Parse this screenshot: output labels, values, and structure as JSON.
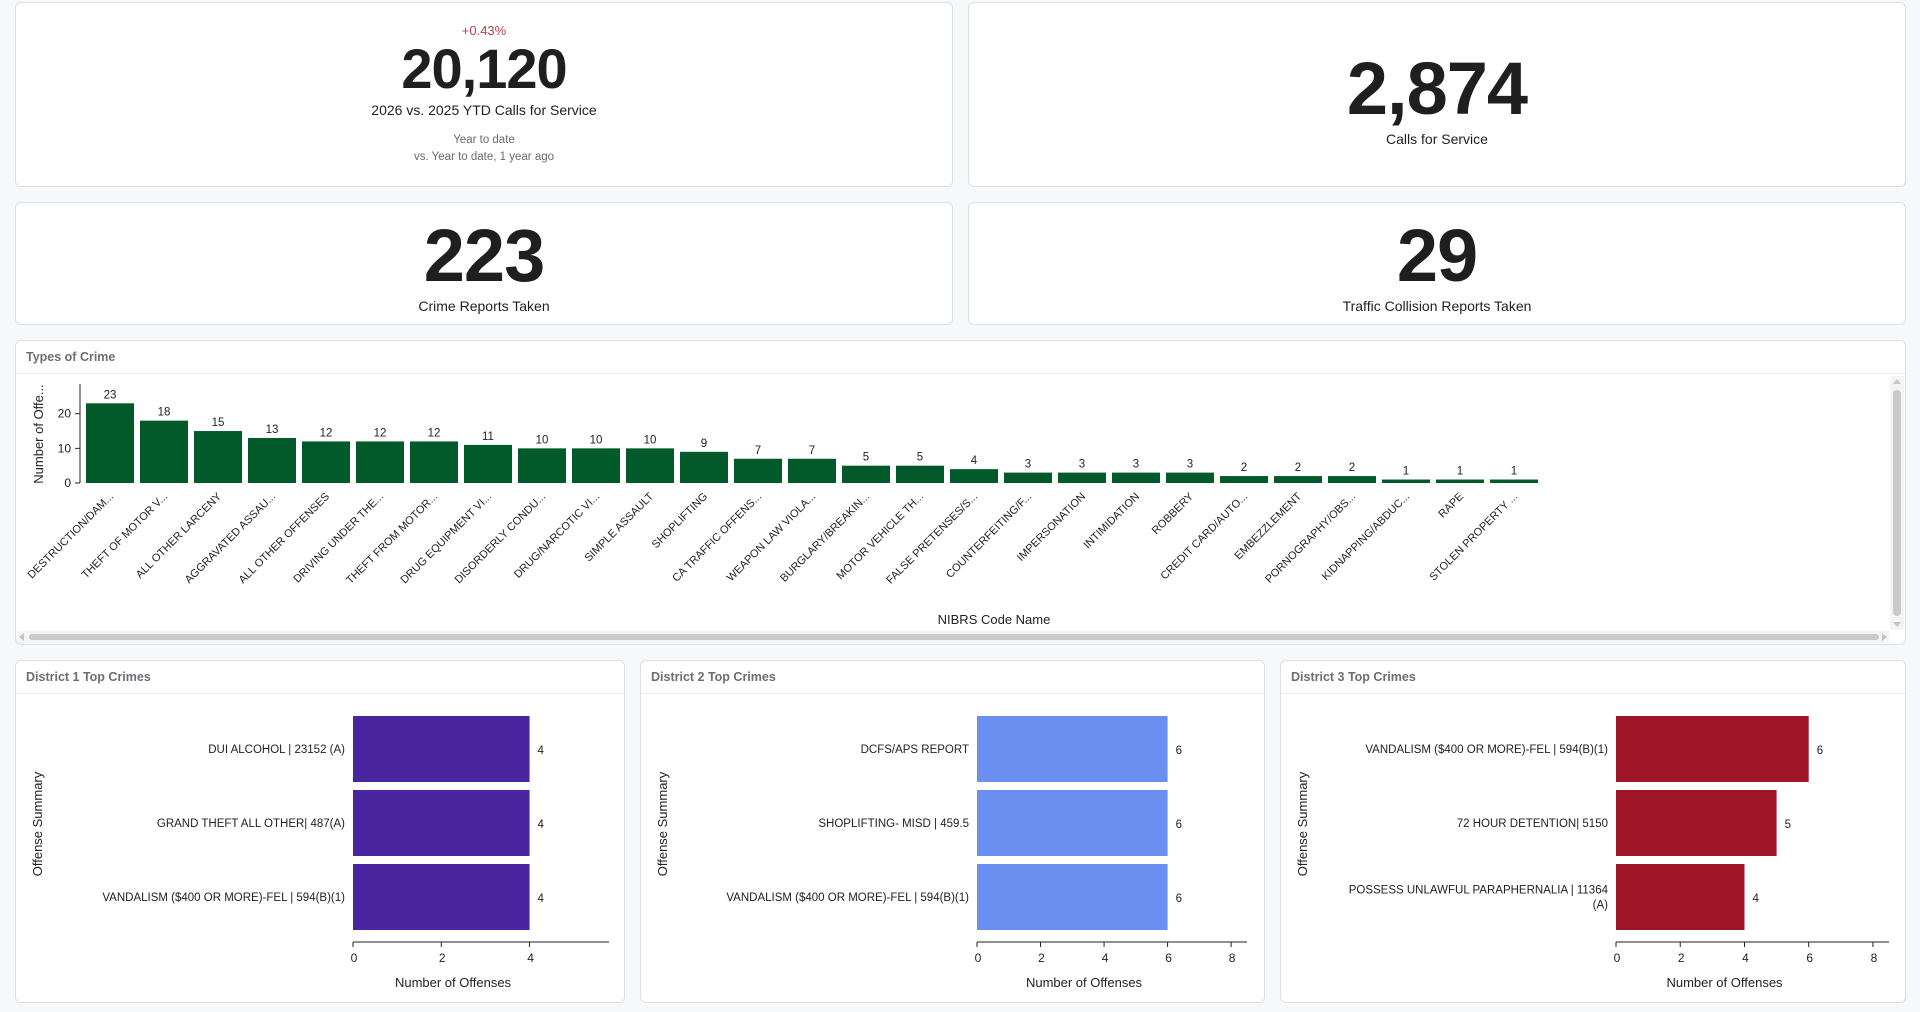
{
  "kpis": {
    "ytd": {
      "delta": "+0.43%",
      "delta_color": "#b5424a",
      "value": "20,120",
      "label": "2026 vs. 2025 YTD Calls for Service",
      "sub1": "Year to date",
      "sub2": "vs. Year to date, 1 year ago"
    },
    "calls": {
      "value": "2,874",
      "label": "Calls for Service"
    },
    "crime_reports": {
      "value": "223",
      "label": "Crime Reports Taken"
    },
    "collision_reports": {
      "value": "29",
      "label": "Traffic Collision Reports Taken"
    }
  },
  "chart_data": [
    {
      "id": "types",
      "type": "bar",
      "title": "Types of Crime",
      "xlabel": "NIBRS Code Name",
      "ylabel": "Number of Offe...",
      "color": "#02592a",
      "ylim": [
        0,
        28
      ],
      "yticks": [
        0,
        10,
        20
      ],
      "categories": [
        "DESTRUCTION/DAM...",
        "THEFT OF MOTOR V...",
        "ALL OTHER LARCENY",
        "AGGRAVATED ASSAU...",
        "ALL OTHER OFFENSES",
        "DRIVING UNDER THE...",
        "THEFT FROM MOTOR...",
        "DRUG EQUIPMENT VI...",
        "DISORDERLY CONDU...",
        "DRUG/NARCOTIC VI...",
        "SIMPLE ASSAULT",
        "SHOPLIFTING",
        "CA TRAFFIC OFFENS...",
        "WEAPON LAW VIOLA...",
        "BURGLARY/BREAKIN...",
        "MOTOR VEHICLE TH...",
        "FALSE PRETENSES/S...",
        "COUNTERFEITING/F...",
        "IMPERSONATION",
        "INTIMIDATION",
        "ROBBERY",
        "CREDIT CARD/AUTO...",
        "EMBEZZLEMENT",
        "PORNOGRAPHY/OBS...",
        "KIDNAPPING/ABDUC...",
        "RAPE",
        "STOLEN PROPERTY ..."
      ],
      "values": [
        23,
        18,
        15,
        13,
        12,
        12,
        12,
        11,
        10,
        10,
        10,
        9,
        7,
        7,
        5,
        5,
        4,
        3,
        3,
        3,
        3,
        2,
        2,
        2,
        1,
        1,
        1
      ],
      "grid": false,
      "legend": "none"
    },
    {
      "id": "d1",
      "type": "bar",
      "orientation": "horizontal",
      "title": "District 1 Top Crimes",
      "xlabel": "Number of Offenses",
      "ylabel": "Offense Summary",
      "color": "#4a25a0",
      "xlim": [
        0,
        5.8
      ],
      "xticks": [
        0,
        2,
        4
      ],
      "categories": [
        [
          "DUI ALCOHOL | 23152 (A)"
        ],
        [
          "GRAND THEFT ALL OTHER| 487(A)"
        ],
        [
          "VANDALISM ($400 OR MORE)-FEL | 594(B)(1)"
        ]
      ],
      "values": [
        4,
        4,
        4
      ],
      "grid": false,
      "legend": "none"
    },
    {
      "id": "d2",
      "type": "bar",
      "orientation": "horizontal",
      "title": "District 2 Top Crimes",
      "xlabel": "Number of Offenses",
      "ylabel": "Offense Summary",
      "color": "#6a8ff0",
      "xlim": [
        0,
        8.5
      ],
      "xticks": [
        0,
        2,
        4,
        6,
        8
      ],
      "categories": [
        [
          "DCFS/APS REPORT"
        ],
        [
          "SHOPLIFTING- MISD | 459.5"
        ],
        [
          "VANDALISM ($400 OR MORE)-FEL | 594(B)(1)"
        ]
      ],
      "values": [
        6,
        6,
        6
      ],
      "grid": false,
      "legend": "none"
    },
    {
      "id": "d3",
      "type": "bar",
      "orientation": "horizontal",
      "title": "District 3 Top Crimes",
      "xlabel": "Number of Offenses",
      "ylabel": "Offense Summary",
      "color": "#a01428",
      "xlim": [
        0,
        8.5
      ],
      "xticks": [
        0,
        2,
        4,
        6,
        8
      ],
      "categories": [
        [
          "VANDALISM ($400 OR MORE)-FEL | 594(B)(1)"
        ],
        [
          "72 HOUR DETENTION| 5150"
        ],
        [
          "POSSESS UNLAWFUL PARAPHERNALIA | 11364",
          "(A)"
        ]
      ],
      "values": [
        6,
        5,
        4
      ],
      "grid": false,
      "legend": "none"
    }
  ]
}
